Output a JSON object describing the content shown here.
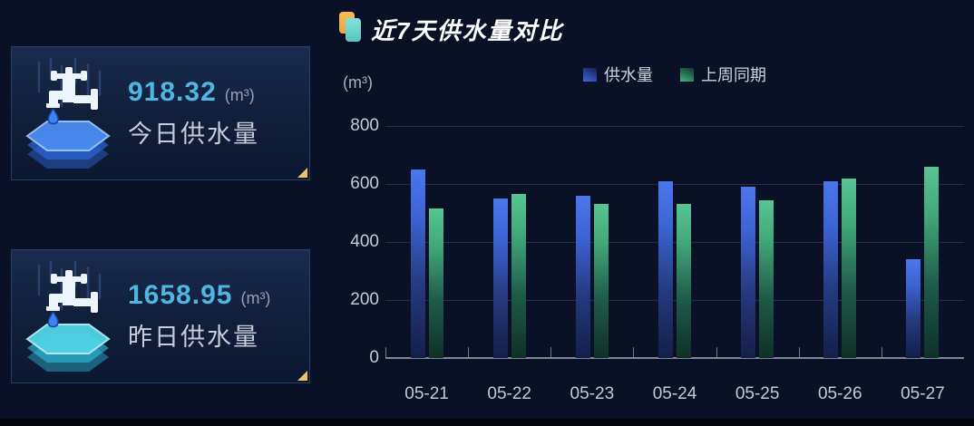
{
  "cards": [
    {
      "value": "918.32",
      "unit": "(m³)",
      "label": "今日供水量"
    },
    {
      "value": "1658.95",
      "unit": "(m³)",
      "label": "昨日供水量"
    }
  ],
  "chart": {
    "title": "近7天供水量对比",
    "unit_label": "(m³)"
  },
  "chart_data": {
    "type": "bar",
    "title": "近7天供水量对比",
    "categories": [
      "05-21",
      "05-22",
      "05-23",
      "05-24",
      "05-25",
      "05-26",
      "05-27"
    ],
    "series": [
      {
        "name": "供水量",
        "color": "#3f66d4",
        "values": [
          650,
          550,
          560,
          610,
          590,
          610,
          340
        ]
      },
      {
        "name": "上周同期",
        "color": "#45b184",
        "values": [
          515,
          565,
          530,
          530,
          545,
          620,
          660
        ]
      }
    ],
    "ylabel": "(m³)",
    "ylim": [
      0,
      800
    ],
    "yticks": [
      0,
      200,
      400,
      600,
      800
    ],
    "grid": true,
    "legend_position": "top"
  },
  "colors": {
    "background": "#0a1126",
    "card_border": "#2c3e60",
    "value_accent": "#4fb6e2",
    "corner_accent": "#ecc568",
    "bar_blue": "#3f66d4",
    "bar_green": "#45b184"
  }
}
